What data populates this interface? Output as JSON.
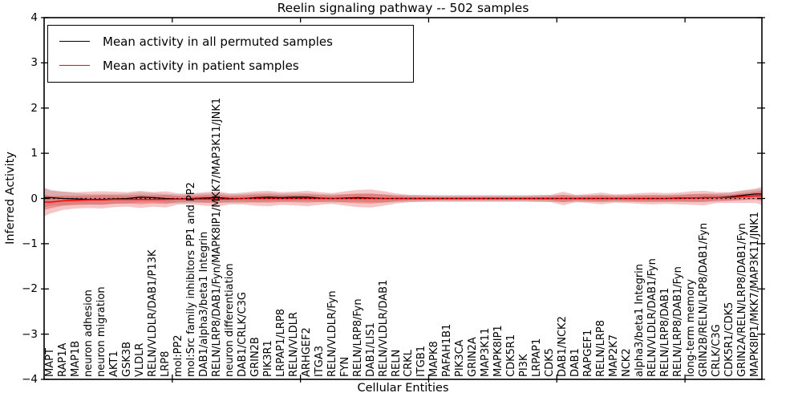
{
  "figure": {
    "background_color": "#ffffff",
    "axes_border_color": "#000000"
  },
  "legend": {
    "position": "upper left",
    "entries": [
      {
        "label": "Mean activity in all permuted samples",
        "color": "#000000"
      },
      {
        "label": "Mean activity in patient samples",
        "color": "#ff0000"
      }
    ]
  },
  "chart_data": {
    "type": "line",
    "title": "Reelin signaling pathway -- 502 samples",
    "xlabel": "Cellular Entities",
    "ylabel": "Inferred Activity",
    "ylim": [
      -4,
      4
    ],
    "yticks": [
      4,
      3,
      2,
      1,
      0,
      -1,
      -2,
      -3,
      -4
    ],
    "xtick_major_positions": [
      10,
      20,
      30,
      40,
      50
    ],
    "grid": false,
    "legend_position": "upper left",
    "zero_line": {
      "y": 0,
      "style": "dotted",
      "color": "#000000"
    },
    "categories": [
      "MAPT",
      "RAP1A",
      "MAP1B",
      "neuron adhesion",
      "neuron migration",
      "AKT1",
      "GSK3B",
      "VLDLR",
      "RELN/VLDLR/DAB1/P13K",
      "LRP8",
      "mol:PP2",
      "mol:Src family inhibitors PP1 and PP2",
      "DAB1/alpha3/beta1 Integrin",
      "RELN/LRP8/DAB1/Fyn/MAPK8IP1/MKK7/MAP3K11/JNK1",
      "neuron differentiation",
      "DAB1/CRLK/C3G",
      "GRIN2B",
      "PIK3R1",
      "LRPAP1/LRP8",
      "RELN/VLDLR",
      "ARHGEF2",
      "ITGA3",
      "RELN/VLDLR/Fyn",
      "FYN",
      "RELN/LRP8/Fyn",
      "DAB1/LIS1",
      "RELN/VLDLR/DAB1",
      "RELN",
      "CRKL",
      "ITGB1",
      "MAPK8",
      "PAFAH1B1",
      "PIK3CA",
      "GRIN2A",
      "MAP3K11",
      "MAPK8IP1",
      "CDK5R1",
      "PI3K",
      "LRPAP1",
      "CDK5",
      "DAB1/NCK2",
      "DAB1",
      "RAPGEF1",
      "RELN/LRP8",
      "MAP2K7",
      "NCK2",
      "alpha3/beta1 Integrin",
      "RELN/VLDLR/DAB1/Fyn",
      "RELN/LRP8/DAB1",
      "RELN/LRP8/DAB1/Fyn",
      "long-term memory",
      "GRIN2B/RELN/LRP8/DAB1/Fyn",
      "CRLK/C3G",
      "CDK5R1/CDK5",
      "GRIN2A/RELN/LRP8/DAB1/Fyn",
      "MAPK8IP1/MKK7/MAP3K11/JNK1"
    ],
    "series": [
      {
        "name": "Mean activity in all permuted samples",
        "color": "#000000",
        "values": [
          0.02,
          0.0,
          -0.01,
          -0.02,
          -0.02,
          -0.01,
          0.0,
          0.03,
          0.02,
          0.0,
          -0.01,
          0.0,
          0.01,
          0.02,
          0.0,
          0.0,
          0.02,
          0.03,
          0.02,
          0.03,
          0.03,
          0.01,
          0.0,
          0.01,
          0.02,
          0.01,
          0.0,
          0.0,
          0.0,
          0.0,
          0.0,
          0.0,
          0.0,
          0.0,
          0.0,
          0.0,
          0.0,
          0.0,
          0.0,
          0.0,
          0.0,
          0.0,
          0.0,
          0.0,
          0.0,
          0.0,
          0.0,
          0.0,
          0.0,
          0.01,
          0.01,
          0.02,
          0.02,
          0.04,
          0.07,
          0.1
        ],
        "band_half_widths": [
          0.18,
          0.15,
          0.13,
          0.12,
          0.12,
          0.11,
          0.11,
          0.11,
          0.1,
          0.1,
          0.1,
          0.1,
          0.1,
          0.1,
          0.1,
          0.1,
          0.1,
          0.1,
          0.09,
          0.09,
          0.09,
          0.09,
          0.09,
          0.09,
          0.09,
          0.09,
          0.09,
          0.08,
          0.08,
          0.08,
          0.08,
          0.08,
          0.08,
          0.08,
          0.08,
          0.08,
          0.08,
          0.08,
          0.08,
          0.08,
          0.08,
          0.08,
          0.08,
          0.08,
          0.08,
          0.08,
          0.08,
          0.08,
          0.08,
          0.08,
          0.09,
          0.09,
          0.09,
          0.09,
          0.1,
          0.1
        ],
        "band_color": "#aaaaaa",
        "band_opacity": 0.4
      },
      {
        "name": "Mean activity in patient samples",
        "color": "#ff0000",
        "values": [
          -0.08,
          -0.05,
          -0.04,
          -0.03,
          -0.03,
          -0.02,
          -0.02,
          -0.02,
          -0.02,
          -0.02,
          -0.01,
          -0.01,
          -0.01,
          -0.01,
          -0.01,
          0.0,
          0.0,
          0.0,
          0.0,
          0.0,
          0.0,
          0.0,
          0.0,
          0.0,
          0.0,
          0.0,
          0.0,
          0.0,
          0.0,
          0.0,
          0.0,
          0.0,
          0.0,
          0.0,
          0.0,
          0.0,
          0.0,
          0.0,
          0.0,
          0.0,
          0.0,
          0.0,
          0.0,
          0.0,
          0.0,
          0.0,
          0.0,
          0.0,
          0.0,
          0.0,
          0.01,
          0.01,
          0.02,
          0.02,
          0.04,
          0.06
        ],
        "band_half_widths": [
          0.25,
          0.2,
          0.18,
          0.18,
          0.19,
          0.17,
          0.16,
          0.19,
          0.16,
          0.18,
          0.12,
          0.12,
          0.15,
          0.17,
          0.12,
          0.13,
          0.16,
          0.17,
          0.14,
          0.15,
          0.17,
          0.14,
          0.12,
          0.16,
          0.19,
          0.2,
          0.16,
          0.11,
          0.08,
          0.07,
          0.06,
          0.06,
          0.06,
          0.06,
          0.06,
          0.06,
          0.06,
          0.06,
          0.07,
          0.08,
          0.15,
          0.08,
          0.1,
          0.13,
          0.09,
          0.1,
          0.12,
          0.13,
          0.12,
          0.13,
          0.15,
          0.16,
          0.12,
          0.12,
          0.14,
          0.16
        ],
        "band_color": "#e03030",
        "band_opacity": 0.28
      }
    ]
  }
}
